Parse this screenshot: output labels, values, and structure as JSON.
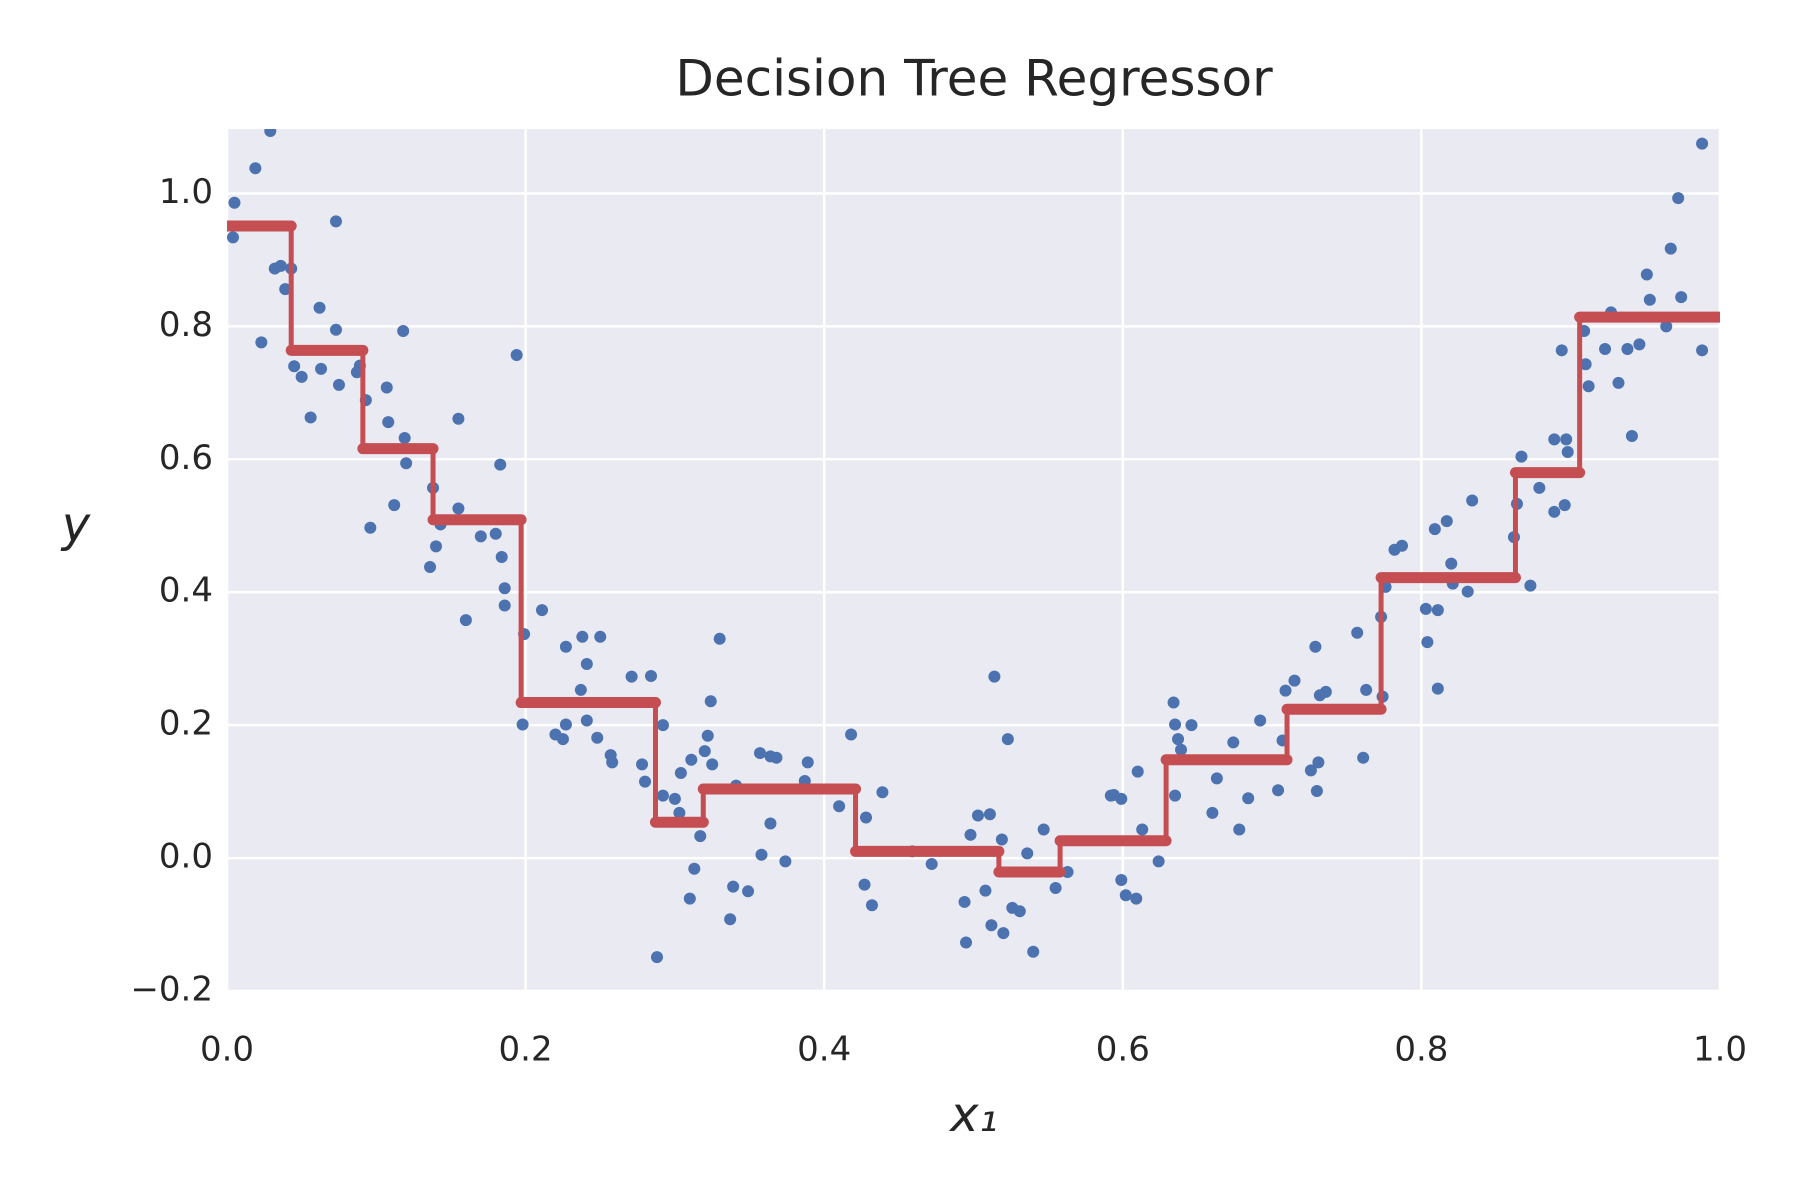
{
  "chart_data": {
    "type": "scatter",
    "title": "Decision Tree Regressor",
    "xlabel": "x₁",
    "ylabel": "y",
    "xlim": [
      0,
      1
    ],
    "ylim": [
      -0.2,
      1.097
    ],
    "xticks": [
      {
        "value": 0,
        "label": "0.0"
      },
      0.2,
      0.4,
      0.6,
      0.8,
      {
        "value": 1,
        "label": "1.0"
      }
    ],
    "yticks": [
      {
        "value": -0.2,
        "label": "−0.2"
      },
      {
        "value": 0,
        "label": "0.0"
      },
      0.2,
      0.4,
      0.6,
      0.8,
      {
        "value": 1,
        "label": "1.0"
      }
    ],
    "grid": true,
    "series": [
      {
        "mode": "points",
        "color": "#4c72b0",
        "x": [
          0.005,
          0.004,
          0.019,
          0.029,
          0.023,
          0.032,
          0.036,
          0.039,
          0.043,
          0.045,
          0.05,
          0.056,
          0.062,
          0.063,
          0.073,
          0.073,
          0.075,
          0.087,
          0.089,
          0.093,
          0.096,
          0.107,
          0.108,
          0.112,
          0.118,
          0.119,
          0.12,
          0.136,
          0.138,
          0.14,
          0.143,
          0.155,
          0.155,
          0.16,
          0.17,
          0.18,
          0.183,
          0.184,
          0.186,
          0.186,
          0.194,
          0.199,
          0.198,
          0.211,
          0.22,
          0.225,
          0.227,
          0.227,
          0.237,
          0.238,
          0.241,
          0.241,
          0.248,
          0.25,
          0.257,
          0.258,
          0.271,
          0.278,
          0.28,
          0.284,
          0.288,
          0.292,
          0.292,
          0.3,
          0.303,
          0.304,
          0.31,
          0.311,
          0.313,
          0.317,
          0.32,
          0.322,
          0.324,
          0.325,
          0.33,
          0.337,
          0.339,
          0.341,
          0.349,
          0.357,
          0.358,
          0.364,
          0.364,
          0.368,
          0.374,
          0.387,
          0.389,
          0.41,
          0.418,
          0.428,
          0.427,
          0.432,
          0.439,
          0.459,
          0.472,
          0.494,
          0.495,
          0.498,
          0.503,
          0.508,
          0.511,
          0.512,
          0.514,
          0.519,
          0.52,
          0.523,
          0.526,
          0.531,
          0.536,
          0.54,
          0.547,
          0.555,
          0.563,
          0.592,
          0.594,
          0.599,
          0.599,
          0.602,
          0.609,
          0.61,
          0.613,
          0.624,
          0.634,
          0.635,
          0.635,
          0.637,
          0.639,
          0.646,
          0.66,
          0.663,
          0.674,
          0.678,
          0.684,
          0.692,
          0.704,
          0.707,
          0.709,
          0.715,
          0.726,
          0.729,
          0.73,
          0.731,
          0.732,
          0.736,
          0.757,
          0.761,
          0.763,
          0.773,
          0.774,
          0.776,
          0.782,
          0.787,
          0.803,
          0.804,
          0.811,
          0.809,
          0.811,
          0.817,
          0.82,
          0.821,
          0.831,
          0.834,
          0.862,
          0.864,
          0.867,
          0.873,
          0.879,
          0.889,
          0.889,
          0.894,
          0.896,
          0.897,
          0.898,
          0.909,
          0.91,
          0.912,
          0.923,
          0.927,
          0.932,
          0.938,
          0.941,
          0.946,
          0.951,
          0.953,
          0.964,
          0.967,
          0.972,
          0.974,
          0.988,
          0.988
        ],
        "values": [
          0.986,
          0.934,
          1.038,
          1.094,
          0.776,
          0.887,
          0.891,
          0.856,
          0.887,
          0.74,
          0.724,
          0.663,
          0.828,
          0.736,
          0.958,
          0.795,
          0.712,
          0.731,
          0.741,
          0.689,
          0.497,
          0.708,
          0.656,
          0.531,
          0.793,
          0.632,
          0.594,
          0.438,
          0.557,
          0.469,
          0.502,
          0.661,
          0.526,
          0.358,
          0.484,
          0.488,
          0.592,
          0.453,
          0.406,
          0.38,
          0.757,
          0.337,
          0.201,
          0.373,
          0.186,
          0.179,
          0.318,
          0.201,
          0.253,
          0.333,
          0.292,
          0.207,
          0.181,
          0.333,
          0.155,
          0.144,
          0.273,
          0.141,
          0.115,
          0.274,
          -0.149,
          0.2,
          0.094,
          0.089,
          0.068,
          0.128,
          -0.061,
          0.148,
          -0.016,
          0.033,
          0.161,
          0.184,
          0.236,
          0.141,
          0.33,
          -0.092,
          -0.043,
          0.109,
          -0.05,
          0.158,
          0.005,
          0.052,
          0.153,
          0.151,
          -0.005,
          0.116,
          0.144,
          0.078,
          0.186,
          0.061,
          -0.04,
          -0.071,
          0.099,
          0.01,
          -0.009,
          -0.066,
          -0.127,
          0.035,
          0.064,
          -0.049,
          0.066,
          -0.101,
          0.273,
          0.028,
          -0.113,
          0.179,
          -0.075,
          -0.08,
          0.007,
          -0.141,
          0.043,
          -0.045,
          -0.021,
          0.094,
          0.095,
          0.089,
          -0.033,
          -0.056,
          -0.061,
          0.13,
          0.043,
          -0.005,
          0.234,
          0.201,
          0.094,
          0.179,
          0.163,
          0.2,
          0.068,
          0.12,
          0.174,
          0.043,
          0.09,
          0.207,
          0.102,
          0.177,
          0.252,
          0.267,
          0.132,
          0.318,
          0.101,
          0.144,
          0.245,
          0.25,
          0.339,
          0.151,
          0.253,
          0.363,
          0.243,
          0.408,
          0.464,
          0.47,
          0.375,
          0.325,
          0.373,
          0.495,
          0.255,
          0.507,
          0.443,
          0.413,
          0.401,
          0.538,
          0.483,
          0.533,
          0.604,
          0.41,
          0.557,
          0.521,
          0.63,
          0.764,
          0.531,
          0.63,
          0.611,
          0.793,
          0.743,
          0.71,
          0.766,
          0.821,
          0.715,
          0.766,
          0.635,
          0.773,
          0.878,
          0.84,
          0.8,
          0.917,
          0.993,
          0.844,
          0.764,
          1.075
        ]
      },
      {
        "mode": "step",
        "color": "#c44e52",
        "x": [
          0,
          0.043,
          0.091,
          0.138,
          0.197,
          0.287,
          0.319,
          0.421,
          0.517,
          0.558,
          0.629,
          0.71,
          0.773,
          0.863,
          0.906
        ],
        "values": [
          0.951,
          0.764,
          0.616,
          0.509,
          0.234,
          0.054,
          0.104,
          0.01,
          -0.021,
          0.026,
          0.148,
          0.224,
          0.422,
          0.58,
          0.814
        ]
      }
    ]
  }
}
